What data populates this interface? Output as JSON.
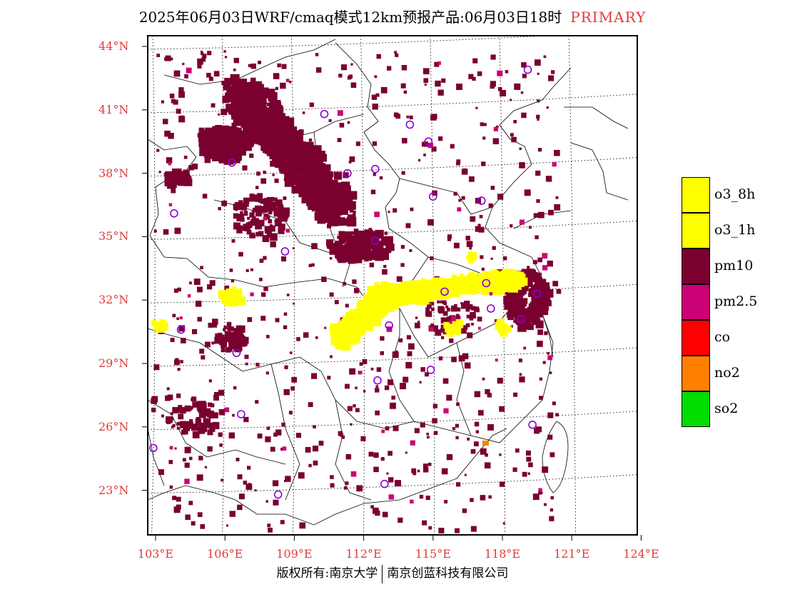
{
  "title": {
    "text": "2025年06月03日WRF/cmaq模式12km预报产品:06月03日18时",
    "tag": "PRIMARY"
  },
  "map": {
    "lon_range": [
      102,
      124
    ],
    "lat_range": [
      21,
      44.5
    ],
    "lat_ticks": [
      "44°N",
      "41°N",
      "38°N",
      "35°N",
      "32°N",
      "29°N",
      "26°N",
      "23°N"
    ],
    "lon_ticks": [
      "103°E",
      "106°E",
      "109°E",
      "112°E",
      "115°E",
      "118°E",
      "121°E",
      "124°E"
    ],
    "colors": {
      "pm10": "#7a0030",
      "o3": "#ffff00",
      "pm25": "#cc0077",
      "co": "#ff0000",
      "no2": "#ff7f00",
      "so2": "#00dd00",
      "station": "#8a00d4"
    },
    "stations": [
      [
        110.3,
        40.8
      ],
      [
        114.0,
        40.3
      ],
      [
        114.8,
        39.5
      ],
      [
        119.1,
        42.9
      ],
      [
        106.3,
        38.5
      ],
      [
        111.3,
        38.0
      ],
      [
        112.5,
        38.2
      ],
      [
        115.0,
        36.9
      ],
      [
        103.8,
        36.1
      ],
      [
        108.6,
        34.3
      ],
      [
        112.5,
        34.8
      ],
      [
        117.1,
        36.7
      ],
      [
        115.5,
        32.4
      ],
      [
        117.3,
        32.8
      ],
      [
        119.5,
        32.3
      ],
      [
        117.5,
        31.6
      ],
      [
        118.8,
        31.1
      ],
      [
        113.1,
        30.8
      ],
      [
        104.1,
        30.6
      ],
      [
        106.5,
        29.5
      ],
      [
        112.6,
        28.2
      ],
      [
        114.9,
        28.7
      ],
      [
        106.7,
        26.6
      ],
      [
        119.3,
        26.1
      ],
      [
        102.9,
        25.0
      ],
      [
        108.3,
        22.8
      ],
      [
        112.9,
        23.3
      ]
    ]
  },
  "legend": [
    {
      "label": "o3_8h",
      "color": "#ffff00"
    },
    {
      "label": "o3_1h",
      "color": "#ffff00"
    },
    {
      "label": "pm10",
      "color": "#7a0030"
    },
    {
      "label": "pm2.5",
      "color": "#cc0077"
    },
    {
      "label": "co",
      "color": "#ff0000"
    },
    {
      "label": "no2",
      "color": "#ff7f00"
    },
    {
      "label": "so2",
      "color": "#00dd00"
    }
  ],
  "footer": {
    "left": "版权所有:南京大学",
    "right": "南京创蓝科技有限公司"
  }
}
